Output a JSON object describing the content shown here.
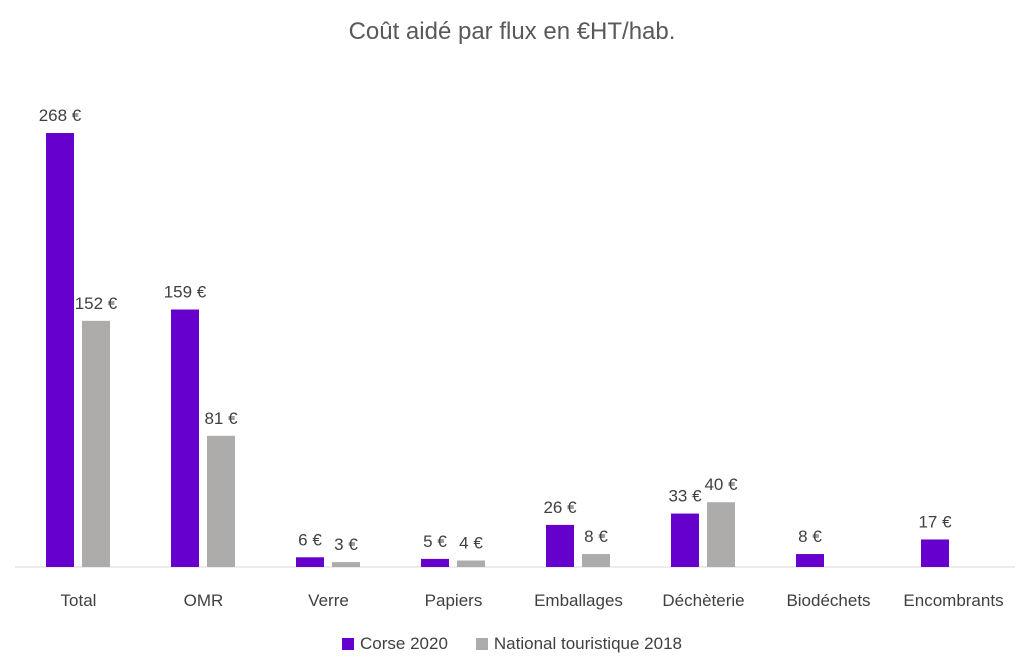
{
  "chart_data": {
    "type": "bar",
    "title": "Coût aidé par flux en €HT/hab.",
    "xlabel": "",
    "ylabel": "",
    "ylim": [
      0,
      268
    ],
    "grid": false,
    "legend_position": "bottom",
    "categories": [
      "Total",
      "OMR",
      "Verre",
      "Papiers",
      "Emballages",
      "Déchèterie",
      "Biodéchets",
      "Encombrants"
    ],
    "series": [
      {
        "name": "Corse 2020",
        "color": "#6600cc",
        "values": [
          268,
          159,
          6,
          5,
          26,
          33,
          8,
          17
        ],
        "labels": [
          "268 €",
          "159 €",
          "6 €",
          "5 €",
          "26 €",
          "33 €",
          "8 €",
          "17 €"
        ]
      },
      {
        "name": "National touristique 2018",
        "color": "#aeabab",
        "values": [
          152,
          81,
          3,
          4,
          8,
          40,
          null,
          null
        ],
        "labels": [
          "152 €",
          "81 €",
          "3 €",
          "4 €",
          "8 €",
          "40 €",
          null,
          null
        ]
      }
    ]
  }
}
